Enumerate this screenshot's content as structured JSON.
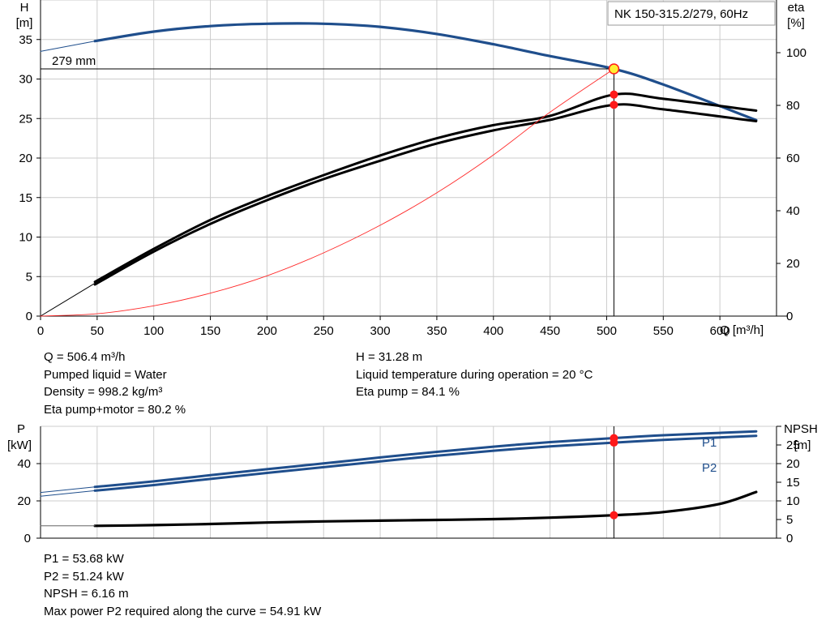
{
  "title": "NK 150-315.2/279, 60Hz",
  "colors": {
    "head_curve": "#1f4e8c",
    "efficiency": "#000000",
    "system_curve": "#ff2a2a",
    "power": "#1f4e8c",
    "npsh": "#000000",
    "grid": "#cccccc",
    "duty_point": "#ff1a1a",
    "duty_marker_fill": "#ffee33"
  },
  "chart_data": [
    {
      "type": "line",
      "name": "head-efficiency-chart",
      "xlabel": "Q [m³/h]",
      "ylabel_left": [
        "H",
        "[m]"
      ],
      "ylabel_right": [
        "eta",
        "[%]"
      ],
      "xlim": [
        0,
        650
      ],
      "ylim_left": [
        0,
        40
      ],
      "ylim_right": [
        0,
        120
      ],
      "x_ticks": [
        0,
        50,
        100,
        150,
        200,
        250,
        300,
        350,
        400,
        450,
        500,
        550,
        600
      ],
      "y_ticks_left": [
        0,
        5,
        10,
        15,
        20,
        25,
        30,
        35
      ],
      "y_ticks_right": [
        0,
        20,
        40,
        60,
        80,
        100
      ],
      "grid": true,
      "annotations": [
        {
          "text": "279 mm"
        }
      ],
      "duty_point": {
        "q": 506.4,
        "h": 31.28,
        "eta_pump": 84.1,
        "eta_pump_motor": 80.2
      },
      "series": [
        {
          "name": "279 mm",
          "axis": "left",
          "style": "head",
          "x": [
            48,
            100,
            150,
            200,
            250,
            300,
            350,
            400,
            450,
            506.4,
            550,
            632
          ],
          "y": [
            34.8,
            36.0,
            36.7,
            37.0,
            37.0,
            36.6,
            35.7,
            34.4,
            32.9,
            31.28,
            29.3,
            24.8
          ]
        },
        {
          "axis": "left",
          "style": "head-extension",
          "x": [
            0,
            48
          ],
          "y": [
            33.5,
            34.8
          ]
        },
        {
          "axis": "right",
          "style": "eta-pump",
          "x": [
            48,
            100,
            150,
            200,
            250,
            300,
            350,
            400,
            450,
            506.4,
            550,
            632
          ],
          "y": [
            13,
            25.5,
            36.5,
            45.5,
            53.5,
            61,
            67.5,
            72.5,
            76,
            84.1,
            82.5,
            78
          ]
        },
        {
          "axis": "right",
          "style": "eta-pump-motor",
          "x": [
            48,
            100,
            150,
            200,
            250,
            300,
            350,
            400,
            450,
            506.4,
            550,
            632
          ],
          "y": [
            12,
            24.5,
            35,
            44,
            52,
            59,
            65.5,
            70.5,
            74.5,
            80.2,
            78.5,
            74
          ]
        },
        {
          "axis": "right",
          "style": "eta-extension",
          "x": [
            0,
            48
          ],
          "y": [
            0,
            12.5
          ]
        },
        {
          "axis": "left",
          "style": "system-curve",
          "x": [
            0,
            50,
            100,
            150,
            200,
            250,
            300,
            350,
            400,
            450,
            506.4
          ],
          "y": [
            0,
            0.3,
            1.3,
            2.9,
            5.1,
            8.0,
            11.5,
            15.6,
            20.4,
            25.8,
            31.28
          ]
        }
      ]
    },
    {
      "type": "line",
      "name": "power-npsh-chart",
      "xlim": [
        0,
        650
      ],
      "ylabel_left": [
        "P",
        "[kW]"
      ],
      "ylabel_right": [
        "NPSH",
        "[m]"
      ],
      "ylim_left": [
        0,
        60
      ],
      "ylim_right": [
        0,
        30
      ],
      "y_ticks_left": [
        0,
        20,
        40
      ],
      "y_ticks_right": [
        0,
        5,
        10,
        15,
        20,
        25
      ],
      "grid": true,
      "duty_point": {
        "q": 506.4,
        "p1": 53.68,
        "p2": 51.24,
        "npsh": 6.16
      },
      "series": [
        {
          "name": "P1",
          "axis": "left",
          "style": "power",
          "x": [
            48,
            100,
            150,
            200,
            250,
            300,
            350,
            400,
            450,
            506.4,
            550,
            632
          ],
          "y": [
            27.5,
            30.5,
            33.8,
            37.0,
            40.1,
            43.3,
            46.3,
            49.1,
            51.5,
            53.68,
            55.2,
            57.3
          ]
        },
        {
          "name": "P2",
          "axis": "left",
          "style": "power",
          "x": [
            48,
            100,
            150,
            200,
            250,
            300,
            350,
            400,
            450,
            506.4,
            550,
            632
          ],
          "y": [
            25.5,
            28.5,
            31.8,
            35.0,
            38.1,
            41.2,
            44.2,
            46.9,
            49.2,
            51.24,
            52.7,
            54.91
          ]
        },
        {
          "axis": "left",
          "style": "power-extension",
          "x": [
            0,
            48
          ],
          "y": [
            24.5,
            27.5
          ]
        },
        {
          "axis": "left",
          "style": "power-extension",
          "x": [
            0,
            48
          ],
          "y": [
            22.5,
            25.5
          ]
        },
        {
          "axis": "right",
          "style": "npsh",
          "x": [
            48,
            100,
            150,
            200,
            250,
            300,
            350,
            400,
            450,
            506.4,
            550,
            600,
            632
          ],
          "y": [
            3.3,
            3.5,
            3.8,
            4.2,
            4.5,
            4.7,
            4.9,
            5.1,
            5.5,
            6.16,
            7.0,
            9.2,
            12.4
          ]
        },
        {
          "axis": "right",
          "style": "npsh-extension",
          "x": [
            0,
            48
          ],
          "y": [
            3.3,
            3.3
          ]
        }
      ]
    }
  ],
  "readout_top": {
    "left": [
      "Q = 506.4 m³/h",
      "Pumped liquid = Water",
      "Density = 998.2 kg/m³",
      "Eta pump+motor = 80.2 %"
    ],
    "right": [
      "H = 31.28 m",
      "Liquid temperature during operation = 20 °C",
      "Eta pump = 84.1 %"
    ]
  },
  "readout_bottom": [
    "P1 = 53.68 kW",
    "P2 = 51.24 kW",
    "NPSH = 6.16 m",
    "Max power P2 required along the curve = 54.91 kW"
  ]
}
